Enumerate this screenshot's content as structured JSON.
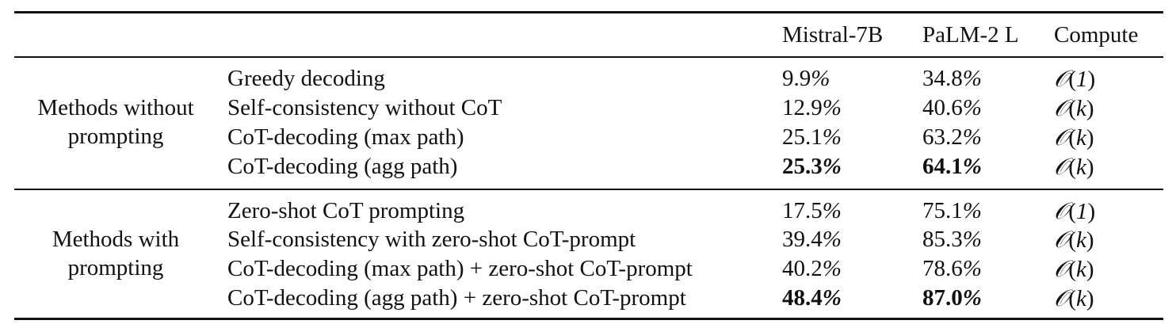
{
  "table": {
    "headers": {
      "col1": "",
      "col2": "",
      "mistral": "Mistral-7B",
      "palm": "PaLM-2 L",
      "compute": "Compute"
    },
    "groups": [
      {
        "label_line1": "Methods without",
        "label_line2": "prompting",
        "rows": [
          {
            "method": "Greedy decoding",
            "mistral": "9.9",
            "palm": "34.8",
            "compute_arg": "1",
            "bold": false
          },
          {
            "method": "Self-consistency without CoT",
            "mistral": "12.9",
            "palm": "40.6",
            "compute_arg": "k",
            "bold": false
          },
          {
            "method": "CoT-decoding (max path)",
            "mistral": "25.1",
            "palm": "63.2",
            "compute_arg": "k",
            "bold": false
          },
          {
            "method": "CoT-decoding (agg path)",
            "mistral": "25.3",
            "palm": "64.1",
            "compute_arg": "k",
            "bold": true
          }
        ]
      },
      {
        "label_line1": "Methods with",
        "label_line2": "prompting",
        "rows": [
          {
            "method": "Zero-shot CoT prompting",
            "mistral": "17.5",
            "palm": "75.1",
            "compute_arg": "1",
            "bold": false
          },
          {
            "method": "Self-consistency with zero-shot CoT-prompt",
            "mistral": "39.4",
            "palm": "85.3",
            "compute_arg": "k",
            "bold": false
          },
          {
            "method": "CoT-decoding (max path) + zero-shot CoT-prompt",
            "mistral": "40.2",
            "palm": "78.6",
            "compute_arg": "k",
            "bold": false
          },
          {
            "method": "CoT-decoding (agg path) + zero-shot CoT-prompt",
            "mistral": "48.4",
            "palm": "87.0",
            "compute_arg": "k",
            "bold": true
          }
        ]
      }
    ]
  }
}
